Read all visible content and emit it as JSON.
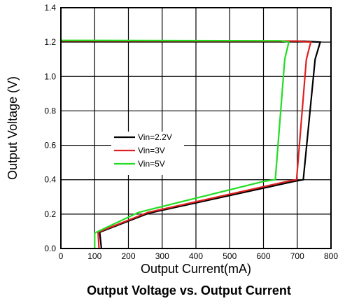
{
  "figure": {
    "caption": "Output Voltage vs. Output Current"
  },
  "chart_data": {
    "type": "line",
    "xlabel": "Output Current(mA)",
    "ylabel": "Output Voltage (V)",
    "xlim": [
      0,
      800
    ],
    "ylim": [
      0,
      1.4
    ],
    "x_ticks": [
      "0",
      "100",
      "200",
      "300",
      "400",
      "500",
      "600",
      "700",
      "800"
    ],
    "y_ticks": [
      "0.0",
      "0.2",
      "0.4",
      "0.6",
      "0.8",
      "1.0",
      "1.2",
      "1.4"
    ],
    "grid": true,
    "legend_position": "left-middle",
    "series": [
      {
        "name": "Vin=2.2V",
        "color": "#000000",
        "points": [
          [
            0,
            1.206
          ],
          [
            720,
            1.205
          ],
          [
            768,
            1.2
          ],
          [
            753,
            1.1
          ],
          [
            718,
            0.4
          ],
          [
            690,
            0.39
          ],
          [
            260,
            0.205
          ],
          [
            115,
            0.095
          ],
          [
            120,
            0.0
          ]
        ]
      },
      {
        "name": "Vin=3V",
        "color": "#e02020",
        "points": [
          [
            0,
            1.207
          ],
          [
            700,
            1.206
          ],
          [
            740,
            1.2
          ],
          [
            727,
            1.1
          ],
          [
            698,
            0.4
          ],
          [
            670,
            0.39
          ],
          [
            258,
            0.21
          ],
          [
            110,
            0.095
          ],
          [
            113,
            0.0
          ]
        ]
      },
      {
        "name": "Vin=5V",
        "color": "#22dd22",
        "points": [
          [
            0,
            1.21
          ],
          [
            650,
            1.208
          ],
          [
            675,
            1.2
          ],
          [
            663,
            1.1
          ],
          [
            635,
            0.4
          ],
          [
            600,
            0.39
          ],
          [
            230,
            0.21
          ],
          [
            100,
            0.09
          ],
          [
            100,
            0.0
          ]
        ]
      }
    ]
  }
}
